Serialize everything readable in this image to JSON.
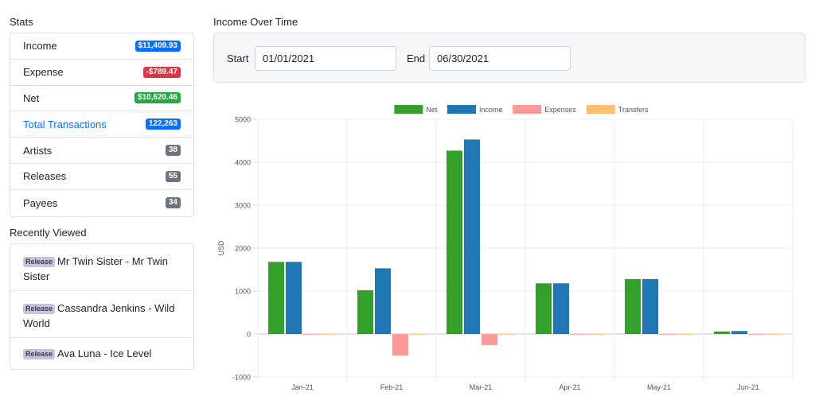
{
  "stats": {
    "title": "Stats",
    "items": [
      {
        "label": "Income",
        "value": "$11,409.93",
        "color": "#0d6efd"
      },
      {
        "label": "Expense",
        "value": "-$789.47",
        "color": "#dc3545"
      },
      {
        "label": "Net",
        "value": "$10,620.46",
        "color": "#28a745"
      },
      {
        "label": "Total Transactions",
        "value": "122,263",
        "color": "#0d6efd"
      },
      {
        "label": "Artists",
        "value": "38",
        "color": "#6c757d"
      },
      {
        "label": "Releases",
        "value": "55",
        "color": "#6c757d"
      },
      {
        "label": "Payees",
        "value": "34",
        "color": "#6c757d"
      }
    ]
  },
  "recent": {
    "title": "Recently Viewed",
    "items": [
      {
        "type": "Release",
        "text": "Mr Twin Sister - Mr Twin Sister"
      },
      {
        "type": "Release",
        "text": "Cassandra Jenkins - Wild World"
      },
      {
        "type": "Release",
        "text": "Ava Luna - Ice Level"
      }
    ]
  },
  "income": {
    "title": "Income Over Time",
    "start_label": "Start",
    "start_value": "01/01/2021",
    "end_label": "End",
    "end_value": "06/30/2021"
  },
  "chart_data": {
    "type": "bar",
    "categories": [
      "Jan-21",
      "Feb-21",
      "Mar-21",
      "Apr-21",
      "May-21",
      "Jun-21"
    ],
    "series": [
      {
        "name": "Net",
        "color": "#33a02c",
        "values": [
          1680,
          1020,
          4270,
          1180,
          1280,
          60
        ]
      },
      {
        "name": "Income",
        "color": "#1f78b4",
        "values": [
          1680,
          1530,
          4530,
          1180,
          1280,
          70
        ]
      },
      {
        "name": "Expenses",
        "color": "#fb9a99",
        "values": [
          0,
          -500,
          -260,
          0,
          0,
          -10
        ]
      },
      {
        "name": "Transfers",
        "color": "#fdbf6f",
        "values": [
          0,
          0,
          0,
          0,
          0,
          0
        ]
      }
    ],
    "ylabel": "USD",
    "ylim": [
      -1000,
      5000
    ],
    "yticks": [
      "-1000",
      "0",
      "1000",
      "2000",
      "3000",
      "4000",
      "5000"
    ],
    "legend_position": "top"
  }
}
